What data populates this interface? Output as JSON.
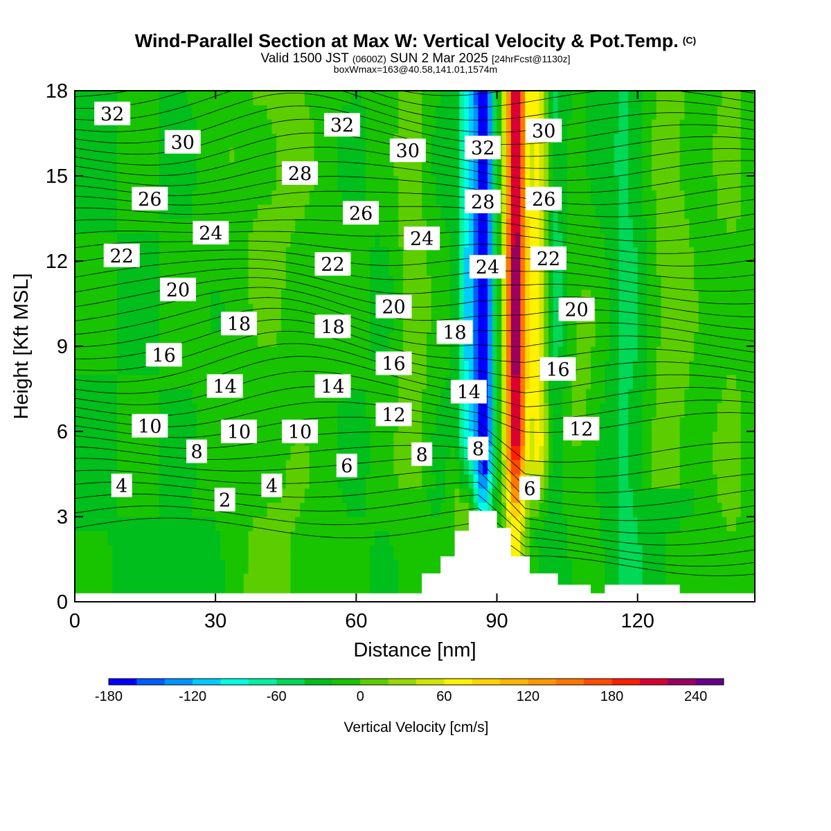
{
  "title": {
    "main": "Wind-Parallel Section at Max W: Vertical Velocity & Pot.Temp.",
    "copyright": "(C)",
    "valid_prefix": "Valid 1500 JST",
    "valid_zulu": "(0600Z)",
    "valid_date": "SUN 2 Mar 2025",
    "forecast": "[24hrFcst@1130z]",
    "boxwmax": "boxWmax=163@40.58,141.01,1574m"
  },
  "chart_data": {
    "type": "heatmap",
    "xlabel": "Distance [nm]",
    "ylabel": "Height [Kft MSL]",
    "xlim": [
      0,
      145
    ],
    "ylim": [
      0,
      18
    ],
    "x_ticks": [
      0,
      30,
      60,
      90,
      120
    ],
    "y_ticks": [
      0,
      3,
      6,
      9,
      12,
      15,
      18
    ],
    "colorbar": {
      "label": "Vertical Velocity [cm/s]",
      "min": -180,
      "max": 260,
      "step": 20,
      "tick_labels": [
        -180,
        -120,
        -60,
        0,
        60,
        120,
        180,
        240
      ],
      "colors": [
        "#0000ff",
        "#005cff",
        "#0094ff",
        "#00cbff",
        "#00ffe1",
        "#00f2a3",
        "#00d857",
        "#00be1c",
        "#18c400",
        "#5cce00",
        "#97d900",
        "#cfe600",
        "#fff200",
        "#ffd400",
        "#ffb600",
        "#ff9800",
        "#ff7600",
        "#ff4c00",
        "#ff1e00",
        "#d80034",
        "#9b0060",
        "#66008a"
      ]
    },
    "updraft_max_x_nm": 94,
    "downdraft_min_x_nm": 87,
    "pot_temp_labels": [
      {
        "text": "32",
        "x": 8,
        "y": 17.2
      },
      {
        "text": "32",
        "x": 57,
        "y": 16.8
      },
      {
        "text": "32",
        "x": 87,
        "y": 16.0
      },
      {
        "text": "30",
        "x": 23,
        "y": 16.2
      },
      {
        "text": "30",
        "x": 71,
        "y": 15.9
      },
      {
        "text": "30",
        "x": 100,
        "y": 16.6
      },
      {
        "text": "28",
        "x": 48,
        "y": 15.1
      },
      {
        "text": "28",
        "x": 87,
        "y": 14.1
      },
      {
        "text": "26",
        "x": 16,
        "y": 14.2
      },
      {
        "text": "26",
        "x": 61,
        "y": 13.7
      },
      {
        "text": "26",
        "x": 100,
        "y": 14.2
      },
      {
        "text": "24",
        "x": 29,
        "y": 13.0
      },
      {
        "text": "24",
        "x": 74,
        "y": 12.8
      },
      {
        "text": "24",
        "x": 88,
        "y": 11.8
      },
      {
        "text": "22",
        "x": 10,
        "y": 12.2
      },
      {
        "text": "22",
        "x": 55,
        "y": 11.9
      },
      {
        "text": "22",
        "x": 101,
        "y": 12.1
      },
      {
        "text": "20",
        "x": 22,
        "y": 11.0
      },
      {
        "text": "20",
        "x": 68,
        "y": 10.4
      },
      {
        "text": "20",
        "x": 107,
        "y": 10.3
      },
      {
        "text": "18",
        "x": 35,
        "y": 9.8
      },
      {
        "text": "18",
        "x": 55,
        "y": 9.7
      },
      {
        "text": "18",
        "x": 81,
        "y": 9.5
      },
      {
        "text": "16",
        "x": 19,
        "y": 8.7
      },
      {
        "text": "16",
        "x": 68,
        "y": 8.4
      },
      {
        "text": "16",
        "x": 103,
        "y": 8.2
      },
      {
        "text": "14",
        "x": 32,
        "y": 7.6
      },
      {
        "text": "14",
        "x": 55,
        "y": 7.6
      },
      {
        "text": "14",
        "x": 84,
        "y": 7.4
      },
      {
        "text": "12",
        "x": 68,
        "y": 6.6
      },
      {
        "text": "12",
        "x": 108,
        "y": 6.1
      },
      {
        "text": "10",
        "x": 16,
        "y": 6.2
      },
      {
        "text": "10",
        "x": 35,
        "y": 6.0
      },
      {
        "text": "10",
        "x": 48,
        "y": 6.0
      },
      {
        "text": "8",
        "x": 26,
        "y": 5.3
      },
      {
        "text": "8",
        "x": 74,
        "y": 5.2
      },
      {
        "text": "8",
        "x": 86,
        "y": 5.4
      },
      {
        "text": "6",
        "x": 58,
        "y": 4.8
      },
      {
        "text": "6",
        "x": 97,
        "y": 4.0
      },
      {
        "text": "4",
        "x": 10,
        "y": 4.1
      },
      {
        "text": "4",
        "x": 42,
        "y": 4.1
      },
      {
        "text": "2",
        "x": 32,
        "y": 3.6
      }
    ],
    "terrain_profile_kft": [
      [
        0,
        0.3
      ],
      [
        74,
        0.3
      ],
      [
        74,
        1.0
      ],
      [
        78,
        1.0
      ],
      [
        78,
        1.6
      ],
      [
        81,
        1.6
      ],
      [
        81,
        2.5
      ],
      [
        84,
        2.5
      ],
      [
        84,
        3.2
      ],
      [
        90,
        3.2
      ],
      [
        90,
        2.6
      ],
      [
        93,
        2.6
      ],
      [
        93,
        1.6
      ],
      [
        97,
        1.6
      ],
      [
        97,
        1.0
      ],
      [
        103,
        1.0
      ],
      [
        103,
        0.6
      ],
      [
        110,
        0.6
      ],
      [
        110,
        0.3
      ],
      [
        113,
        0.3
      ],
      [
        113,
        0.6
      ],
      [
        129,
        0.6
      ],
      [
        129,
        0.3
      ],
      [
        145,
        0.3
      ]
    ]
  }
}
